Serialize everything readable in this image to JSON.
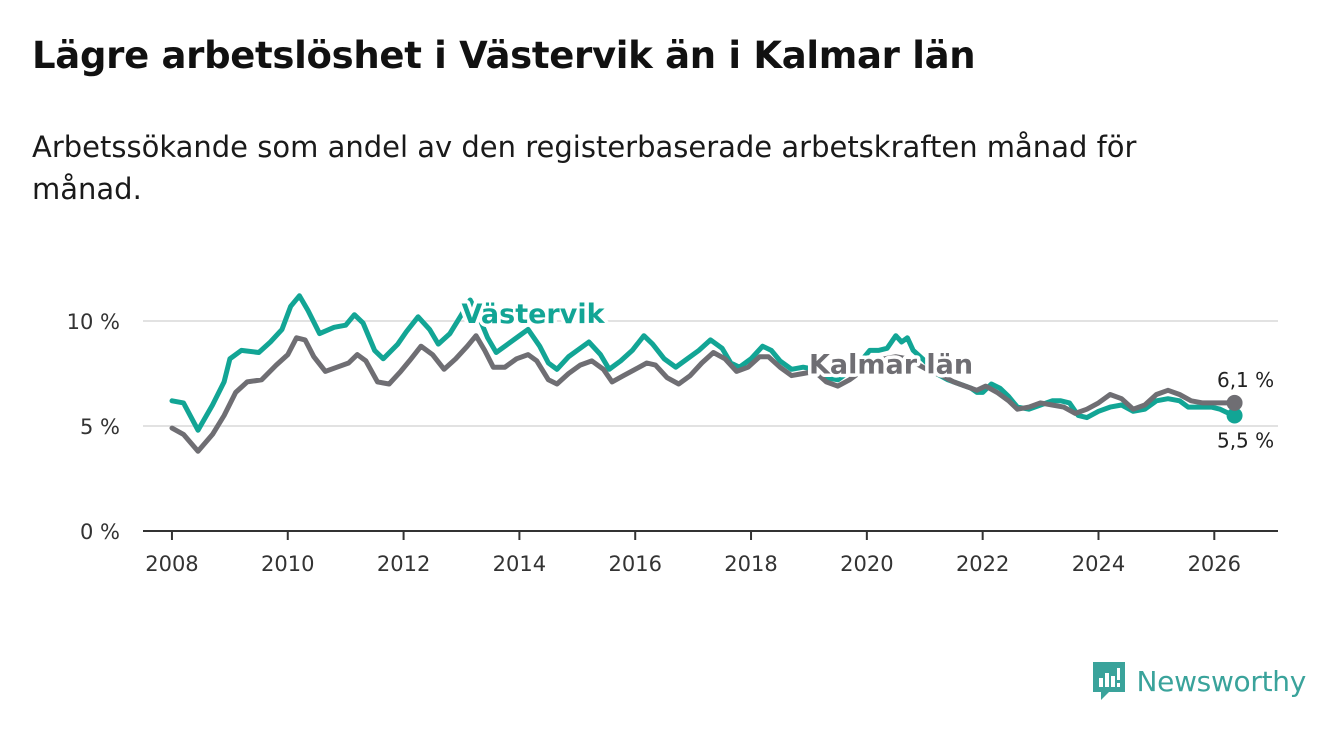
{
  "title": "Lägre arbetslöshet i Västervik än i Kalmar län",
  "subtitle": "Arbetssökande som andel av den registerbaserade arbetskraften månad för månad.",
  "brand": {
    "name": "Newsworthy",
    "icon": "newsworthy-logo-icon"
  },
  "colors": {
    "vastervik": "#12a595",
    "kalmar": "#6f6e73",
    "grid": "#d9d9d9",
    "axis": "#333333"
  },
  "chart_data": {
    "type": "line",
    "title": "Lägre arbetslöshet i Västervik än i Kalmar län",
    "xlabel": "",
    "ylabel": "",
    "xlim": [
      2007.5,
      2027.1
    ],
    "ylim": [
      0,
      11
    ],
    "y_ticks": [
      {
        "value": 0,
        "label": "0 %"
      },
      {
        "value": 5,
        "label": "5 %"
      },
      {
        "value": 10,
        "label": "10 %"
      }
    ],
    "x_ticks": [
      {
        "value": 2008,
        "label": "2008"
      },
      {
        "value": 2010,
        "label": "2010"
      },
      {
        "value": 2012,
        "label": "2012"
      },
      {
        "value": 2014,
        "label": "2014"
      },
      {
        "value": 2016,
        "label": "2016"
      },
      {
        "value": 2018,
        "label": "2018"
      },
      {
        "value": 2020,
        "label": "2020"
      },
      {
        "value": 2022,
        "label": "2022"
      },
      {
        "value": 2024,
        "label": "2024"
      },
      {
        "value": 2026,
        "label": "2026"
      }
    ],
    "grid": true,
    "series": [
      {
        "name": "Västervik",
        "label_at": [
          2013.0,
          9.9
        ],
        "end_label": "5,5 %",
        "end_value": 5.5,
        "points": [
          [
            2008.0,
            6.2
          ],
          [
            2008.2,
            6.1
          ],
          [
            2008.45,
            4.8
          ],
          [
            2008.7,
            6.0
          ],
          [
            2008.9,
            7.1
          ],
          [
            2009.0,
            8.2
          ],
          [
            2009.2,
            8.6
          ],
          [
            2009.5,
            8.5
          ],
          [
            2009.7,
            9.0
          ],
          [
            2009.9,
            9.6
          ],
          [
            2010.05,
            10.7
          ],
          [
            2010.2,
            11.2
          ],
          [
            2010.35,
            10.5
          ],
          [
            2010.55,
            9.4
          ],
          [
            2010.8,
            9.7
          ],
          [
            2011.0,
            9.8
          ],
          [
            2011.15,
            10.3
          ],
          [
            2011.3,
            9.9
          ],
          [
            2011.5,
            8.6
          ],
          [
            2011.65,
            8.2
          ],
          [
            2011.9,
            8.9
          ],
          [
            2012.05,
            9.5
          ],
          [
            2012.25,
            10.2
          ],
          [
            2012.45,
            9.6
          ],
          [
            2012.6,
            8.9
          ],
          [
            2012.8,
            9.4
          ],
          [
            2013.0,
            10.3
          ],
          [
            2013.15,
            11.0
          ],
          [
            2013.3,
            10.2
          ],
          [
            2013.45,
            9.2
          ],
          [
            2013.6,
            8.5
          ],
          [
            2013.8,
            8.9
          ],
          [
            2014.0,
            9.3
          ],
          [
            2014.15,
            9.6
          ],
          [
            2014.35,
            8.8
          ],
          [
            2014.5,
            8.0
          ],
          [
            2014.65,
            7.7
          ],
          [
            2014.85,
            8.3
          ],
          [
            2015.0,
            8.6
          ],
          [
            2015.2,
            9.0
          ],
          [
            2015.4,
            8.4
          ],
          [
            2015.55,
            7.7
          ],
          [
            2015.75,
            8.1
          ],
          [
            2015.95,
            8.6
          ],
          [
            2016.15,
            9.3
          ],
          [
            2016.3,
            8.9
          ],
          [
            2016.5,
            8.2
          ],
          [
            2016.7,
            7.8
          ],
          [
            2016.9,
            8.2
          ],
          [
            2017.1,
            8.6
          ],
          [
            2017.3,
            9.1
          ],
          [
            2017.5,
            8.7
          ],
          [
            2017.65,
            8.0
          ],
          [
            2017.8,
            7.8
          ],
          [
            2018.0,
            8.2
          ],
          [
            2018.2,
            8.8
          ],
          [
            2018.35,
            8.6
          ],
          [
            2018.5,
            8.1
          ],
          [
            2018.7,
            7.7
          ],
          [
            2018.9,
            7.8
          ],
          [
            2019.1,
            7.7
          ],
          [
            2019.3,
            7.3
          ],
          [
            2019.5,
            7.2
          ],
          [
            2019.7,
            7.6
          ],
          [
            2019.9,
            8.1
          ],
          [
            2020.05,
            8.6
          ],
          [
            2020.2,
            8.6
          ],
          [
            2020.35,
            8.7
          ],
          [
            2020.5,
            9.3
          ],
          [
            2020.6,
            9.0
          ],
          [
            2020.7,
            9.2
          ],
          [
            2020.8,
            8.6
          ],
          [
            2021.0,
            8.1
          ],
          [
            2021.2,
            7.5
          ],
          [
            2021.4,
            7.2
          ],
          [
            2021.6,
            7.0
          ],
          [
            2021.8,
            6.8
          ],
          [
            2021.9,
            6.6
          ],
          [
            2022.0,
            6.6
          ],
          [
            2022.15,
            7.0
          ],
          [
            2022.3,
            6.8
          ],
          [
            2022.45,
            6.4
          ],
          [
            2022.6,
            5.9
          ],
          [
            2022.8,
            5.8
          ],
          [
            2023.0,
            6.0
          ],
          [
            2023.2,
            6.2
          ],
          [
            2023.35,
            6.2
          ],
          [
            2023.5,
            6.1
          ],
          [
            2023.65,
            5.5
          ],
          [
            2023.8,
            5.4
          ],
          [
            2024.0,
            5.7
          ],
          [
            2024.2,
            5.9
          ],
          [
            2024.4,
            6.0
          ],
          [
            2024.6,
            5.7
          ],
          [
            2024.8,
            5.8
          ],
          [
            2025.0,
            6.2
          ],
          [
            2025.2,
            6.3
          ],
          [
            2025.4,
            6.2
          ],
          [
            2025.55,
            5.9
          ],
          [
            2025.75,
            5.9
          ],
          [
            2025.95,
            5.9
          ],
          [
            2026.1,
            5.8
          ],
          [
            2026.25,
            5.6
          ],
          [
            2026.35,
            5.5
          ]
        ]
      },
      {
        "name": "Kalmar län",
        "label_at": [
          2019.0,
          7.5
        ],
        "end_label": "6,1 %",
        "end_value": 6.1,
        "points": [
          [
            2008.0,
            4.9
          ],
          [
            2008.2,
            4.6
          ],
          [
            2008.45,
            3.8
          ],
          [
            2008.7,
            4.6
          ],
          [
            2008.9,
            5.5
          ],
          [
            2009.1,
            6.6
          ],
          [
            2009.3,
            7.1
          ],
          [
            2009.55,
            7.2
          ],
          [
            2009.8,
            7.9
          ],
          [
            2010.0,
            8.4
          ],
          [
            2010.15,
            9.2
          ],
          [
            2010.3,
            9.1
          ],
          [
            2010.45,
            8.3
          ],
          [
            2010.65,
            7.6
          ],
          [
            2010.85,
            7.8
          ],
          [
            2011.05,
            8.0
          ],
          [
            2011.2,
            8.4
          ],
          [
            2011.35,
            8.1
          ],
          [
            2011.55,
            7.1
          ],
          [
            2011.75,
            7.0
          ],
          [
            2011.95,
            7.6
          ],
          [
            2012.1,
            8.1
          ],
          [
            2012.3,
            8.8
          ],
          [
            2012.5,
            8.4
          ],
          [
            2012.7,
            7.7
          ],
          [
            2012.9,
            8.2
          ],
          [
            2013.1,
            8.8
          ],
          [
            2013.25,
            9.3
          ],
          [
            2013.4,
            8.6
          ],
          [
            2013.55,
            7.8
          ],
          [
            2013.75,
            7.8
          ],
          [
            2013.95,
            8.2
          ],
          [
            2014.15,
            8.4
          ],
          [
            2014.3,
            8.1
          ],
          [
            2014.5,
            7.2
          ],
          [
            2014.65,
            7.0
          ],
          [
            2014.85,
            7.5
          ],
          [
            2015.05,
            7.9
          ],
          [
            2015.25,
            8.1
          ],
          [
            2015.45,
            7.7
          ],
          [
            2015.6,
            7.1
          ],
          [
            2015.8,
            7.4
          ],
          [
            2016.0,
            7.7
          ],
          [
            2016.2,
            8.0
          ],
          [
            2016.35,
            7.9
          ],
          [
            2016.55,
            7.3
          ],
          [
            2016.75,
            7.0
          ],
          [
            2016.95,
            7.4
          ],
          [
            2017.15,
            8.0
          ],
          [
            2017.35,
            8.5
          ],
          [
            2017.55,
            8.2
          ],
          [
            2017.75,
            7.6
          ],
          [
            2017.95,
            7.8
          ],
          [
            2018.15,
            8.3
          ],
          [
            2018.3,
            8.3
          ],
          [
            2018.5,
            7.8
          ],
          [
            2018.7,
            7.4
          ],
          [
            2018.9,
            7.5
          ],
          [
            2019.1,
            7.6
          ],
          [
            2019.3,
            7.1
          ],
          [
            2019.5,
            6.9
          ],
          [
            2019.7,
            7.2
          ],
          [
            2019.9,
            7.6
          ],
          [
            2020.1,
            8.0
          ],
          [
            2020.3,
            8.2
          ],
          [
            2020.5,
            8.3
          ],
          [
            2020.7,
            8.2
          ],
          [
            2020.9,
            7.9
          ],
          [
            2021.1,
            7.6
          ],
          [
            2021.3,
            7.4
          ],
          [
            2021.5,
            7.1
          ],
          [
            2021.7,
            6.9
          ],
          [
            2021.9,
            6.7
          ],
          [
            2022.05,
            6.9
          ],
          [
            2022.25,
            6.6
          ],
          [
            2022.45,
            6.2
          ],
          [
            2022.6,
            5.8
          ],
          [
            2022.8,
            5.9
          ],
          [
            2023.0,
            6.1
          ],
          [
            2023.2,
            6.0
          ],
          [
            2023.4,
            5.9
          ],
          [
            2023.6,
            5.6
          ],
          [
            2023.8,
            5.8
          ],
          [
            2024.0,
            6.1
          ],
          [
            2024.2,
            6.5
          ],
          [
            2024.4,
            6.3
          ],
          [
            2024.6,
            5.8
          ],
          [
            2024.8,
            6.0
          ],
          [
            2025.0,
            6.5
          ],
          [
            2025.2,
            6.7
          ],
          [
            2025.4,
            6.5
          ],
          [
            2025.6,
            6.2
          ],
          [
            2025.8,
            6.1
          ],
          [
            2026.0,
            6.1
          ],
          [
            2026.2,
            6.1
          ],
          [
            2026.35,
            6.1
          ]
        ]
      }
    ]
  }
}
